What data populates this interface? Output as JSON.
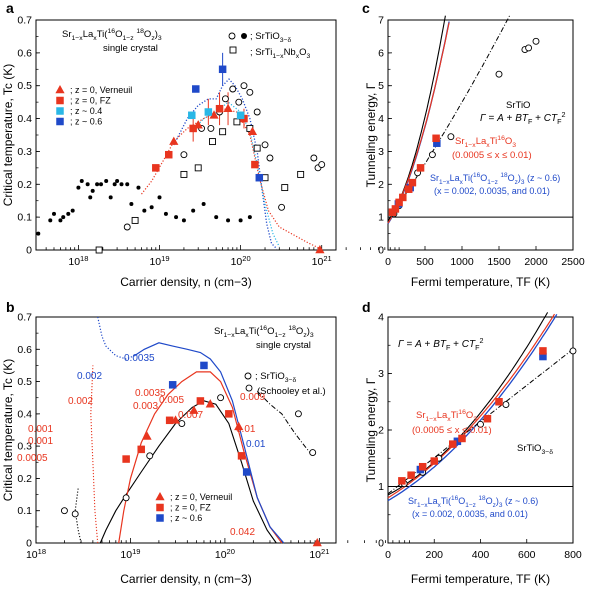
{
  "chart_data": [
    {
      "panel": "a",
      "type": "scatter",
      "xscale": "log",
      "xlim": [
        3e+17,
        1.5e+21
      ],
      "ylim": [
        0,
        0.7
      ],
      "xlabel": "Carrier density, n (cm−3)",
      "ylabel": "Critical temperature, Tc (K)",
      "xticks": [
        "10^18",
        "10^19",
        "10^20",
        "10^21"
      ],
      "yticks": [
        "0",
        "0.1",
        "0.2",
        "0.3",
        "0.4",
        "0.5",
        "0.6",
        "0.7"
      ],
      "title": "Sr1−xLaxTi(16O1−z18Oz)3",
      "subtitle": "single crystal",
      "legend": {
        "top_right": [
          "●; SrTiO3−δ",
          "□; SrTi1−xNbxO3"
        ],
        "bottom_left": [
          "z = 0, Verneuil",
          "z = 0, FZ",
          "z ~ 0.4",
          "z ~ 0.6"
        ]
      },
      "series": [
        {
          "name": "z = 0, Verneuil",
          "marker": "triangle",
          "color": "#e8351f",
          "points": [
            [
              1.5e+19,
              0.33
            ],
            [
              3e+19,
              0.38
            ],
            [
              4.7e+19,
              0.41
            ],
            [
              7e+19,
              0.43
            ],
            [
              1.4e+20,
              0.36
            ],
            [
              9.5e+20,
              0.0
            ]
          ]
        },
        {
          "name": "z = 0, FZ",
          "marker": "square",
          "color": "#e8351f",
          "points": [
            [
              9e+18,
              0.25
            ],
            [
              1.3e+19,
              0.29
            ],
            [
              2.6e+19,
              0.37
            ],
            [
              5.5e+19,
              0.43
            ],
            [
              1.1e+20,
              0.4
            ],
            [
              1.5e+20,
              0.26
            ]
          ]
        },
        {
          "name": "z ~ 0.4",
          "marker": "square",
          "color": "#29b7e6",
          "points": [
            [
              2.5e+19,
              0.41
            ],
            [
              4e+19,
              0.42
            ],
            [
              1e+20,
              0.41
            ]
          ]
        },
        {
          "name": "z ~ 0.6",
          "marker": "square",
          "color": "#1f49c9",
          "points": [
            [
              2.8e+19,
              0.49
            ],
            [
              6e+19,
              0.55
            ],
            [
              1.7e+20,
              0.22
            ]
          ]
        },
        {
          "name": "SrTiO3−δ (filled)",
          "marker": "dot",
          "color": "#000000",
          "points": [
            [
              3.2e+17,
              0.05
            ],
            [
              4.5e+17,
              0.09
            ],
            [
              5e+17,
              0.11
            ],
            [
              6e+17,
              0.09
            ],
            [
              6.5e+17,
              0.1
            ],
            [
              7.5e+17,
              0.11
            ],
            [
              8.5e+17,
              0.12
            ],
            [
              1e+18,
              0.19
            ],
            [
              1.1e+18,
              0.21
            ],
            [
              1.3e+18,
              0.2
            ],
            [
              1.4e+18,
              0.16
            ],
            [
              1.5e+18,
              0.18
            ],
            [
              1.7e+18,
              0.2
            ],
            [
              1.9e+18,
              0.2
            ],
            [
              2.2e+18,
              0.21
            ],
            [
              2.5e+18,
              0.16
            ],
            [
              2.8e+18,
              0.2
            ],
            [
              3e+18,
              0.21
            ],
            [
              3.4e+18,
              0.2
            ],
            [
              4e+18,
              0.2
            ],
            [
              4.5e+18,
              0.14
            ],
            [
              5.5e+18,
              0.19
            ],
            [
              6.5e+18,
              0.12
            ],
            [
              8e+18,
              0.13
            ],
            [
              1e+19,
              0.16
            ],
            [
              1.2e+19,
              0.11
            ],
            [
              1.6e+19,
              0.1
            ],
            [
              2e+19,
              0.09
            ],
            [
              2.6e+19,
              0.12
            ],
            [
              3.5e+19,
              0.14
            ],
            [
              5e+19,
              0.1
            ],
            [
              7e+19,
              0.09
            ],
            [
              1e+20,
              0.09
            ],
            [
              1.3e+20,
              0.1
            ]
          ]
        },
        {
          "name": "SrTiO3−δ (open)",
          "marker": "circle",
          "color": "#000000",
          "points": [
            [
              4e+18,
              0.07
            ],
            [
              2e+19,
              0.29
            ],
            [
              3.3e+19,
              0.37
            ],
            [
              4.3e+19,
              0.37
            ],
            [
              5.5e+19,
              0.42
            ],
            [
              6.5e+19,
              0.46
            ],
            [
              8e+19,
              0.49
            ],
            [
              9.5e+19,
              0.45
            ],
            [
              1.1e+20,
              0.5
            ],
            [
              1.3e+20,
              0.48
            ],
            [
              1.6e+20,
              0.42
            ],
            [
              2e+20,
              0.32
            ],
            [
              2.3e+20,
              0.28
            ],
            [
              3.2e+20,
              0.13
            ],
            [
              8e+20,
              0.28
            ],
            [
              9e+20,
              0.25
            ],
            [
              1e+21,
              0.26
            ]
          ]
        },
        {
          "name": "SrTi1−xNbxO3",
          "marker": "open-square",
          "color": "#000000",
          "points": [
            [
              1.8e+18,
              0.0
            ],
            [
              5e+18,
              0.09
            ],
            [
              2e+19,
              0.23
            ],
            [
              3e+19,
              0.25
            ],
            [
              4.5e+19,
              0.33
            ],
            [
              6e+19,
              0.36
            ],
            [
              9e+19,
              0.39
            ],
            [
              1.3e+20,
              0.37
            ],
            [
              1.6e+20,
              0.31
            ],
            [
              2e+20,
              0.22
            ],
            [
              3.5e+20,
              0.19
            ],
            [
              5.5e+20,
              0.23
            ]
          ]
        }
      ]
    },
    {
      "panel": "b",
      "type": "scatter",
      "xscale": "log",
      "xlim": [
        1e+18,
        1.5e+21
      ],
      "ylim": [
        0,
        0.7
      ],
      "xlabel": "Carrier density, n (cm−3)",
      "ylabel": "Critical temperature, Tc (K)",
      "xticks": [
        "10^18",
        "10^19",
        "10^20",
        "10^21"
      ],
      "yticks": [
        "0",
        "0.1",
        "0.2",
        "0.3",
        "0.4",
        "0.5",
        "0.6",
        "0.7"
      ],
      "title": "Sr1−xLaxTi(16O1−z18Oz)3",
      "subtitle": "single crystal",
      "legend": {
        "right": [
          "○; SrTiO3−δ",
          "(Schooley et al.)"
        ],
        "bottom_left": [
          "z = 0, Verneuil",
          "z = 0, FZ",
          "z ~ 0.6"
        ]
      },
      "series": [
        {
          "name": "z = 0, Verneuil",
          "marker": "triangle",
          "color": "#e8351f",
          "points": [
            [
              1.5e+19,
              0.33
            ],
            [
              3e+19,
              0.38
            ],
            [
              4.7e+19,
              0.41
            ],
            [
              7e+19,
              0.43
            ],
            [
              1.4e+20,
              0.36
            ],
            [
              9.5e+20,
              0.0
            ]
          ]
        },
        {
          "name": "z = 0, FZ",
          "marker": "square",
          "color": "#e8351f",
          "points": [
            [
              9e+18,
              0.26
            ],
            [
              1.3e+19,
              0.29
            ],
            [
              2.6e+19,
              0.38
            ],
            [
              5.5e+19,
              0.44
            ],
            [
              1.1e+20,
              0.4
            ],
            [
              1.5e+20,
              0.27
            ]
          ]
        },
        {
          "name": "z ~ 0.6",
          "marker": "square",
          "color": "#1f49c9",
          "points": [
            [
              2.8e+19,
              0.49
            ],
            [
              6e+19,
              0.55
            ],
            [
              1.7e+20,
              0.22
            ]
          ]
        },
        {
          "name": "SrTiO3−δ (Schooley et al.)",
          "marker": "circle",
          "color": "#000000",
          "points": [
            [
              2e+18,
              0.1
            ],
            [
              2.6e+18,
              0.09
            ],
            [
              9e+18,
              0.14
            ],
            [
              1.6e+19,
              0.27
            ],
            [
              3.5e+19,
              0.37
            ],
            [
              9e+19,
              0.45
            ],
            [
              1.8e+20,
              0.48
            ],
            [
              6e+20,
              0.4
            ],
            [
              8.5e+20,
              0.28
            ]
          ]
        }
      ],
      "data_labels": [
        {
          "text": "0.0005",
          "color": "#e8351f"
        },
        {
          "text": "0.001",
          "color": "#e8351f"
        },
        {
          "text": "0.001",
          "color": "#e8351f"
        },
        {
          "text": "0.002",
          "color": "#e8351f"
        },
        {
          "text": "0.002",
          "color": "#1f49c9"
        },
        {
          "text": "0.003",
          "color": "#e8351f"
        },
        {
          "text": "0.0035",
          "color": "#e8351f"
        },
        {
          "text": "0.0035",
          "color": "#1f49c9"
        },
        {
          "text": "0.005",
          "color": "#e8351f"
        },
        {
          "text": "0.007",
          "color": "#e8351f"
        },
        {
          "text": "0.009",
          "color": "#e8351f"
        },
        {
          "text": "0.01",
          "color": "#e8351f"
        },
        {
          "text": "0.01",
          "color": "#1f49c9"
        },
        {
          "text": "0.042",
          "color": "#e8351f"
        }
      ]
    },
    {
      "panel": "c",
      "type": "scatter",
      "xlim": [
        0,
        2500
      ],
      "ylim": [
        0,
        7
      ],
      "xlabel": "Fermi temperature, TF (K)",
      "ylabel": "Tunneling energy, Γ",
      "xticks": [
        "0",
        "500",
        "1000",
        "1500",
        "2000",
        "2500"
      ],
      "yticks": [
        "0",
        "1",
        "2",
        "3",
        "4",
        "5",
        "6",
        "7"
      ],
      "equation": "Γ = A + BTF + CTF2",
      "annotations": [
        "SrTiO3−δ",
        "Sr1−xLaxTi16O3",
        "(0.0005 ≤ x ≤ 0.01)",
        "Sr1−xLaxTi(16O1−z18Oz)3 (z ~ 0.6)",
        "(x = 0.002, 0.0035, and 0.01)"
      ],
      "series": [
        {
          "name": "Sr1−xLaxTi16O3",
          "marker": "square",
          "color": "#e8351f",
          "points": [
            [
              60,
              1.15
            ],
            [
              100,
              1.25
            ],
            [
              150,
              1.45
            ],
            [
              200,
              1.6
            ],
            [
              280,
              1.85
            ],
            [
              330,
              2.05
            ],
            [
              440,
              2.5
            ],
            [
              650,
              3.4
            ]
          ]
        },
        {
          "name": "Sr1−xLaxTi(16O1−z18Oz)3 (z ~ 0.6)",
          "marker": "square",
          "color": "#1f49c9",
          "points": [
            [
              140,
              1.4
            ],
            [
              300,
              1.9
            ],
            [
              660,
              3.25
            ]
          ]
        },
        {
          "name": "SrTiO3−δ",
          "marker": "circle",
          "color": "#000000",
          "points": [
            [
              80,
              1.1
            ],
            [
              150,
              1.35
            ],
            [
              400,
              2.35
            ],
            [
              600,
              2.9
            ],
            [
              850,
              3.45
            ],
            [
              1500,
              5.35
            ],
            [
              1850,
              6.1
            ],
            [
              1900,
              6.15
            ],
            [
              2000,
              6.35
            ]
          ]
        }
      ]
    },
    {
      "panel": "d",
      "type": "scatter",
      "xlim": [
        0,
        800
      ],
      "ylim": [
        0,
        4
      ],
      "xlabel": "Fermi temperature, TF (K)",
      "ylabel": "Tunneling energy, Γ",
      "xticks": [
        "0",
        "200",
        "400",
        "600",
        "800"
      ],
      "yticks": [
        "0",
        "1",
        "2",
        "3",
        "4"
      ],
      "equation": "Γ = A + BTF + CTF2",
      "annotations": [
        "Sr1−xLaxTi16O3",
        "(0.0005 ≤ x ≤ 0.01)",
        "SrTiO3−δ",
        "Sr1−xLaxTi(16O1−z18Oz)3 (z ~ 0.6)",
        "(x = 0.002, 0.0035, and 0.01)"
      ],
      "series": [
        {
          "name": "Sr1−xLaxTi16O3",
          "marker": "square",
          "color": "#e8351f",
          "points": [
            [
              60,
              1.1
            ],
            [
              100,
              1.2
            ],
            [
              150,
              1.35
            ],
            [
              200,
              1.45
            ],
            [
              280,
              1.75
            ],
            [
              320,
              1.85
            ],
            [
              430,
              2.2
            ],
            [
              480,
              2.5
            ],
            [
              670,
              3.4
            ]
          ]
        },
        {
          "name": "Sr1−xLaxTi(16O1−z18Oz)3 (z ~ 0.6)",
          "marker": "square",
          "color": "#1f49c9",
          "points": [
            [
              140,
              1.3
            ],
            [
              300,
              1.8
            ],
            [
              670,
              3.3
            ]
          ]
        },
        {
          "name": "SrTiO3−δ",
          "marker": "circle",
          "color": "#000000",
          "points": [
            [
              70,
              1.05
            ],
            [
              150,
              1.25
            ],
            [
              220,
              1.5
            ],
            [
              320,
              1.85
            ],
            [
              400,
              2.1
            ],
            [
              510,
              2.45
            ],
            [
              800,
              3.4
            ]
          ]
        }
      ]
    }
  ]
}
